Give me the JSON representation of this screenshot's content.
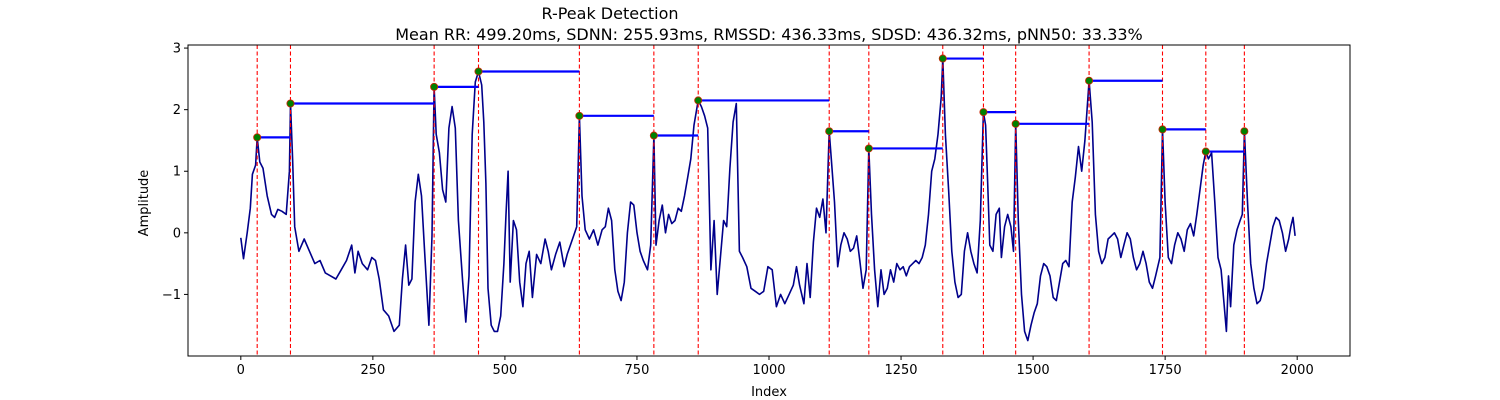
{
  "chart_data": {
    "type": "line",
    "title": "R-Peak Detection",
    "subtitle": "Mean RR: 499.20ms, SDNN: 255.93ms, RMSSD: 436.33ms, SDSD: 436.32ms, pNN50: 33.33%",
    "xlabel": "Index",
    "ylabel": "Amplitude",
    "xlim": [
      -100,
      2100
    ],
    "ylim": [
      -2.0,
      3.05
    ],
    "xticks": [
      0,
      250,
      500,
      750,
      1000,
      1250,
      1500,
      1750,
      2000
    ],
    "yticks": [
      -1,
      0,
      1,
      2,
      3
    ],
    "ytick_labels": [
      "−1",
      "0",
      "1",
      "2",
      "3"
    ],
    "grid": false,
    "colors": {
      "signal": "#00008b",
      "peak_line": "#ff0000",
      "peak_marker_fill": "#008000",
      "peak_marker_edge": "#cc2200",
      "rr_segment": "#0000ff"
    },
    "signal_keypoints": [
      [
        0,
        -0.08
      ],
      [
        5,
        -0.42
      ],
      [
        12,
        0.0
      ],
      [
        18,
        0.4
      ],
      [
        22,
        0.95
      ],
      [
        28,
        1.1
      ],
      [
        31,
        1.55
      ],
      [
        36,
        1.15
      ],
      [
        42,
        1.05
      ],
      [
        50,
        0.6
      ],
      [
        58,
        0.3
      ],
      [
        64,
        0.25
      ],
      [
        70,
        0.38
      ],
      [
        78,
        0.35
      ],
      [
        86,
        0.3
      ],
      [
        92,
        1.0
      ],
      [
        94,
        2.1
      ],
      [
        98,
        1.2
      ],
      [
        102,
        0.1
      ],
      [
        110,
        -0.3
      ],
      [
        120,
        -0.1
      ],
      [
        130,
        -0.3
      ],
      [
        140,
        -0.5
      ],
      [
        150,
        -0.45
      ],
      [
        160,
        -0.65
      ],
      [
        170,
        -0.7
      ],
      [
        180,
        -0.75
      ],
      [
        190,
        -0.6
      ],
      [
        200,
        -0.45
      ],
      [
        210,
        -0.2
      ],
      [
        216,
        -0.65
      ],
      [
        222,
        -0.3
      ],
      [
        230,
        -0.5
      ],
      [
        240,
        -0.6
      ],
      [
        248,
        -0.4
      ],
      [
        255,
        -0.45
      ],
      [
        262,
        -0.75
      ],
      [
        270,
        -1.25
      ],
      [
        280,
        -1.35
      ],
      [
        290,
        -1.6
      ],
      [
        300,
        -1.5
      ],
      [
        306,
        -0.75
      ],
      [
        312,
        -0.2
      ],
      [
        318,
        -0.85
      ],
      [
        324,
        -0.75
      ],
      [
        330,
        0.5
      ],
      [
        336,
        0.95
      ],
      [
        342,
        0.6
      ],
      [
        348,
        -0.3
      ],
      [
        356,
        -1.5
      ],
      [
        362,
        -0.05
      ],
      [
        366,
        2.37
      ],
      [
        370,
        1.6
      ],
      [
        376,
        1.3
      ],
      [
        382,
        0.7
      ],
      [
        388,
        0.5
      ],
      [
        394,
        1.7
      ],
      [
        400,
        2.05
      ],
      [
        406,
        1.7
      ],
      [
        412,
        0.2
      ],
      [
        420,
        -0.8
      ],
      [
        426,
        -1.45
      ],
      [
        432,
        -0.7
      ],
      [
        438,
        1.6
      ],
      [
        444,
        2.45
      ],
      [
        450,
        2.62
      ],
      [
        456,
        2.4
      ],
      [
        460,
        1.8
      ],
      [
        464,
        0.8
      ],
      [
        468,
        -0.9
      ],
      [
        474,
        -1.5
      ],
      [
        480,
        -1.6
      ],
      [
        486,
        -1.6
      ],
      [
        492,
        -1.35
      ],
      [
        498,
        -0.5
      ],
      [
        502,
        0.3
      ],
      [
        506,
        1.0
      ],
      [
        510,
        -0.8
      ],
      [
        516,
        0.2
      ],
      [
        522,
        0.05
      ],
      [
        528,
        -0.8
      ],
      [
        534,
        -1.2
      ],
      [
        540,
        -0.5
      ],
      [
        546,
        -0.3
      ],
      [
        552,
        -1.05
      ],
      [
        560,
        -0.35
      ],
      [
        568,
        -0.5
      ],
      [
        576,
        -0.1
      ],
      [
        582,
        -0.3
      ],
      [
        588,
        -0.6
      ],
      [
        596,
        -0.35
      ],
      [
        604,
        -0.15
      ],
      [
        612,
        -0.55
      ],
      [
        618,
        -0.35
      ],
      [
        624,
        -0.2
      ],
      [
        630,
        -0.05
      ],
      [
        636,
        0.1
      ],
      [
        641,
        1.9
      ],
      [
        646,
        0.6
      ],
      [
        652,
        0.05
      ],
      [
        660,
        -0.1
      ],
      [
        668,
        0.05
      ],
      [
        676,
        -0.2
      ],
      [
        684,
        0.05
      ],
      [
        690,
        0.1
      ],
      [
        696,
        0.4
      ],
      [
        702,
        0.2
      ],
      [
        708,
        -0.6
      ],
      [
        714,
        -0.95
      ],
      [
        720,
        -1.1
      ],
      [
        726,
        -0.8
      ],
      [
        732,
        0.0
      ],
      [
        738,
        0.5
      ],
      [
        744,
        0.45
      ],
      [
        750,
        0.0
      ],
      [
        756,
        -0.3
      ],
      [
        762,
        -0.45
      ],
      [
        770,
        -0.6
      ],
      [
        776,
        -0.2
      ],
      [
        782,
        1.58
      ],
      [
        786,
        -0.2
      ],
      [
        792,
        0.2
      ],
      [
        798,
        0.45
      ],
      [
        804,
        0.0
      ],
      [
        810,
        0.3
      ],
      [
        816,
        0.15
      ],
      [
        822,
        0.2
      ],
      [
        828,
        0.4
      ],
      [
        834,
        0.35
      ],
      [
        840,
        0.6
      ],
      [
        846,
        0.9
      ],
      [
        852,
        1.2
      ],
      [
        858,
        1.75
      ],
      [
        866,
        2.15
      ],
      [
        872,
        2.05
      ],
      [
        878,
        1.9
      ],
      [
        884,
        1.7
      ],
      [
        890,
        -0.6
      ],
      [
        896,
        0.2
      ],
      [
        902,
        -1.0
      ],
      [
        908,
        -0.4
      ],
      [
        914,
        0.2
      ],
      [
        920,
        0.1
      ],
      [
        926,
        1.05
      ],
      [
        932,
        1.8
      ],
      [
        938,
        2.1
      ],
      [
        944,
        -0.3
      ],
      [
        950,
        -0.4
      ],
      [
        958,
        -0.55
      ],
      [
        966,
        -0.9
      ],
      [
        974,
        -0.95
      ],
      [
        982,
        -1.0
      ],
      [
        990,
        -0.95
      ],
      [
        998,
        -0.55
      ],
      [
        1006,
        -0.6
      ],
      [
        1014,
        -1.2
      ],
      [
        1022,
        -1.0
      ],
      [
        1030,
        -1.15
      ],
      [
        1038,
        -1.0
      ],
      [
        1046,
        -0.85
      ],
      [
        1052,
        -0.55
      ],
      [
        1058,
        -0.85
      ],
      [
        1066,
        -1.15
      ],
      [
        1072,
        -0.5
      ],
      [
        1078,
        -1.05
      ],
      [
        1084,
        -0.15
      ],
      [
        1090,
        0.4
      ],
      [
        1096,
        0.25
      ],
      [
        1102,
        0.55
      ],
      [
        1108,
        0.0
      ],
      [
        1114,
        1.65
      ],
      [
        1118,
        1.2
      ],
      [
        1124,
        0.5
      ],
      [
        1130,
        -0.55
      ],
      [
        1136,
        -0.2
      ],
      [
        1142,
        0.0
      ],
      [
        1148,
        -0.1
      ],
      [
        1154,
        -0.3
      ],
      [
        1160,
        -0.25
      ],
      [
        1166,
        -0.05
      ],
      [
        1172,
        -0.45
      ],
      [
        1178,
        -0.9
      ],
      [
        1184,
        -0.6
      ],
      [
        1189,
        1.37
      ],
      [
        1194,
        0.3
      ],
      [
        1200,
        -0.6
      ],
      [
        1206,
        -1.2
      ],
      [
        1212,
        -0.6
      ],
      [
        1218,
        -1.0
      ],
      [
        1224,
        -0.9
      ],
      [
        1230,
        -0.6
      ],
      [
        1236,
        -0.8
      ],
      [
        1242,
        -0.5
      ],
      [
        1248,
        -0.6
      ],
      [
        1254,
        -0.55
      ],
      [
        1260,
        -0.7
      ],
      [
        1266,
        -0.55
      ],
      [
        1272,
        -0.5
      ],
      [
        1278,
        -0.45
      ],
      [
        1284,
        -0.5
      ],
      [
        1290,
        -0.4
      ],
      [
        1296,
        -0.2
      ],
      [
        1302,
        0.3
      ],
      [
        1308,
        1.0
      ],
      [
        1314,
        1.2
      ],
      [
        1320,
        1.6
      ],
      [
        1326,
        2.2
      ],
      [
        1329,
        2.83
      ],
      [
        1334,
        1.6
      ],
      [
        1340,
        0.7
      ],
      [
        1346,
        -0.3
      ],
      [
        1352,
        -0.8
      ],
      [
        1358,
        -1.05
      ],
      [
        1364,
        -1.0
      ],
      [
        1370,
        -0.3
      ],
      [
        1376,
        0.0
      ],
      [
        1382,
        -0.3
      ],
      [
        1388,
        -0.5
      ],
      [
        1394,
        -0.65
      ],
      [
        1400,
        0.2
      ],
      [
        1406,
        1.96
      ],
      [
        1410,
        1.75
      ],
      [
        1414,
        0.8
      ],
      [
        1418,
        -0.2
      ],
      [
        1424,
        -0.3
      ],
      [
        1430,
        0.3
      ],
      [
        1436,
        0.4
      ],
      [
        1440,
        -0.4
      ],
      [
        1446,
        0.1
      ],
      [
        1452,
        0.3
      ],
      [
        1458,
        0.1
      ],
      [
        1463,
        -0.3
      ],
      [
        1467,
        1.77
      ],
      [
        1472,
        0.2
      ],
      [
        1478,
        -1.0
      ],
      [
        1484,
        -1.6
      ],
      [
        1490,
        -1.75
      ],
      [
        1496,
        -1.5
      ],
      [
        1502,
        -1.3
      ],
      [
        1508,
        -1.15
      ],
      [
        1514,
        -0.7
      ],
      [
        1520,
        -0.5
      ],
      [
        1526,
        -0.55
      ],
      [
        1532,
        -0.7
      ],
      [
        1538,
        -1.05
      ],
      [
        1544,
        -1.1
      ],
      [
        1550,
        -0.8
      ],
      [
        1556,
        -0.5
      ],
      [
        1562,
        -0.45
      ],
      [
        1568,
        -0.55
      ],
      [
        1574,
        0.5
      ],
      [
        1580,
        0.9
      ],
      [
        1586,
        1.4
      ],
      [
        1592,
        1.0
      ],
      [
        1598,
        1.5
      ],
      [
        1606,
        2.47
      ],
      [
        1612,
        1.8
      ],
      [
        1618,
        0.3
      ],
      [
        1624,
        -0.3
      ],
      [
        1630,
        -0.5
      ],
      [
        1636,
        -0.4
      ],
      [
        1642,
        -0.1
      ],
      [
        1648,
        -0.05
      ],
      [
        1654,
        0.0
      ],
      [
        1660,
        -0.1
      ],
      [
        1666,
        -0.4
      ],
      [
        1672,
        -0.2
      ],
      [
        1678,
        0.0
      ],
      [
        1684,
        -0.1
      ],
      [
        1690,
        -0.4
      ],
      [
        1696,
        -0.6
      ],
      [
        1702,
        -0.5
      ],
      [
        1708,
        -0.3
      ],
      [
        1714,
        -0.5
      ],
      [
        1720,
        -0.8
      ],
      [
        1726,
        -0.9
      ],
      [
        1732,
        -0.7
      ],
      [
        1740,
        -0.4
      ],
      [
        1745,
        1.68
      ],
      [
        1750,
        0.5
      ],
      [
        1756,
        -0.4
      ],
      [
        1762,
        -0.5
      ],
      [
        1768,
        -0.2
      ],
      [
        1774,
        0.0
      ],
      [
        1780,
        -0.1
      ],
      [
        1786,
        -0.3
      ],
      [
        1792,
        0.05
      ],
      [
        1798,
        0.15
      ],
      [
        1804,
        -0.05
      ],
      [
        1810,
        0.3
      ],
      [
        1816,
        0.7
      ],
      [
        1822,
        1.1
      ],
      [
        1827,
        1.32
      ],
      [
        1832,
        1.2
      ],
      [
        1838,
        1.3
      ],
      [
        1844,
        0.5
      ],
      [
        1850,
        -0.4
      ],
      [
        1856,
        -0.6
      ],
      [
        1862,
        -1.2
      ],
      [
        1866,
        -1.6
      ],
      [
        1870,
        -0.7
      ],
      [
        1874,
        -1.2
      ],
      [
        1880,
        -0.2
      ],
      [
        1886,
        0.05
      ],
      [
        1892,
        0.2
      ],
      [
        1896,
        0.3
      ],
      [
        1900,
        1.65
      ],
      [
        1906,
        0.5
      ],
      [
        1912,
        -0.5
      ],
      [
        1918,
        -0.9
      ],
      [
        1924,
        -1.15
      ],
      [
        1930,
        -1.1
      ],
      [
        1936,
        -0.9
      ],
      [
        1942,
        -0.5
      ],
      [
        1948,
        -0.2
      ],
      [
        1954,
        0.1
      ],
      [
        1960,
        0.25
      ],
      [
        1966,
        0.2
      ],
      [
        1972,
        0.0
      ],
      [
        1978,
        -0.3
      ],
      [
        1984,
        -0.1
      ],
      [
        1988,
        0.1
      ],
      [
        1992,
        0.25
      ],
      [
        1996,
        -0.05
      ]
    ],
    "r_peaks": [
      {
        "x": 31,
        "y": 1.55
      },
      {
        "x": 94,
        "y": 2.1
      },
      {
        "x": 366,
        "y": 2.37
      },
      {
        "x": 450,
        "y": 2.62
      },
      {
        "x": 641,
        "y": 1.9
      },
      {
        "x": 782,
        "y": 1.58
      },
      {
        "x": 866,
        "y": 2.15
      },
      {
        "x": 1114,
        "y": 1.65
      },
      {
        "x": 1189,
        "y": 1.37
      },
      {
        "x": 1329,
        "y": 2.83
      },
      {
        "x": 1406,
        "y": 1.96
      },
      {
        "x": 1467,
        "y": 1.77
      },
      {
        "x": 1606,
        "y": 2.47
      },
      {
        "x": 1745,
        "y": 1.68
      },
      {
        "x": 1827,
        "y": 1.32
      },
      {
        "x": 1900,
        "y": 1.65
      }
    ],
    "rr_segments": [
      {
        "x0": 31,
        "x1": 94,
        "y": 1.55
      },
      {
        "x0": 94,
        "x1": 366,
        "y": 2.1
      },
      {
        "x0": 366,
        "x1": 450,
        "y": 2.37
      },
      {
        "x0": 450,
        "x1": 641,
        "y": 2.62
      },
      {
        "x0": 641,
        "x1": 782,
        "y": 1.9
      },
      {
        "x0": 782,
        "x1": 866,
        "y": 1.58
      },
      {
        "x0": 866,
        "x1": 1114,
        "y": 2.15
      },
      {
        "x0": 1114,
        "x1": 1189,
        "y": 1.65
      },
      {
        "x0": 1189,
        "x1": 1329,
        "y": 1.37
      },
      {
        "x0": 1329,
        "x1": 1406,
        "y": 2.83
      },
      {
        "x0": 1406,
        "x1": 1467,
        "y": 1.96
      },
      {
        "x0": 1467,
        "x1": 1606,
        "y": 1.77
      },
      {
        "x0": 1606,
        "x1": 1745,
        "y": 2.47
      },
      {
        "x0": 1745,
        "x1": 1827,
        "y": 1.68
      },
      {
        "x0": 1827,
        "x1": 1900,
        "y": 1.32
      }
    ]
  }
}
